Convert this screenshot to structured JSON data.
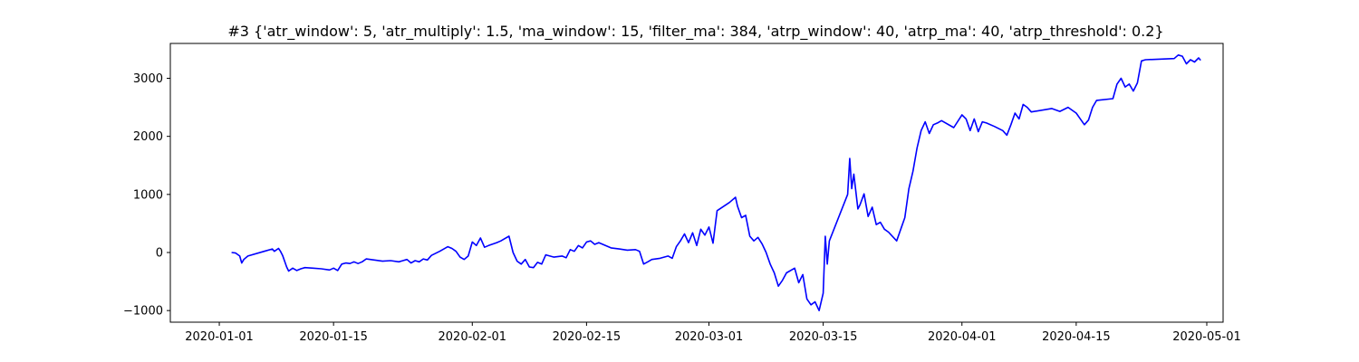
{
  "chart_data": {
    "type": "line",
    "title": "#3 {'atr_window': 5, 'atr_multiply': 1.5, 'ma_window': 15, 'filter_ma': 384, 'atrp_window': 40, 'atrp_ma': 40, 'atrp_threshold': 0.2}",
    "xlabel": "",
    "ylabel": "",
    "x_is_date": true,
    "xlim": [
      "2019-12-26",
      "2020-05-03"
    ],
    "ylim": [
      -1200,
      3600
    ],
    "x_ticks": [
      "2020-01-01",
      "2020-01-15",
      "2020-02-01",
      "2020-02-15",
      "2020-03-01",
      "2020-03-15",
      "2020-04-01",
      "2020-04-15",
      "2020-05-01"
    ],
    "y_ticks": [
      -1000,
      0,
      1000,
      2000,
      3000
    ],
    "y_tick_labels": [
      "−1000",
      "0",
      "1000",
      "2000",
      "3000"
    ],
    "grid": false,
    "legend": "none",
    "line_color": "#0000ff",
    "series": [
      {
        "points": [
          [
            "2020-01-02T12:00",
            0
          ],
          [
            "2020-01-03T00:00",
            -10
          ],
          [
            "2020-01-03T12:00",
            -60
          ],
          [
            "2020-01-03T18:00",
            -180
          ],
          [
            "2020-01-04T00:00",
            -120
          ],
          [
            "2020-01-04T12:00",
            -60
          ],
          [
            "2020-01-06T12:00",
            20
          ],
          [
            "2020-01-07T12:00",
            60
          ],
          [
            "2020-01-07T18:00",
            20
          ],
          [
            "2020-01-08T06:00",
            70
          ],
          [
            "2020-01-08T12:00",
            20
          ],
          [
            "2020-01-08T18:00",
            -50
          ],
          [
            "2020-01-09T06:00",
            -250
          ],
          [
            "2020-01-09T12:00",
            -320
          ],
          [
            "2020-01-10T00:00",
            -270
          ],
          [
            "2020-01-10T12:00",
            -310
          ],
          [
            "2020-01-11T00:00",
            -280
          ],
          [
            "2020-01-11T12:00",
            -260
          ],
          [
            "2020-01-12T12:00",
            -270
          ],
          [
            "2020-01-13T12:00",
            -280
          ],
          [
            "2020-01-14T12:00",
            -300
          ],
          [
            "2020-01-15T00:00",
            -270
          ],
          [
            "2020-01-15T12:00",
            -310
          ],
          [
            "2020-01-16T00:00",
            -200
          ],
          [
            "2020-01-16T12:00",
            -180
          ],
          [
            "2020-01-17T00:00",
            -190
          ],
          [
            "2020-01-17T12:00",
            -160
          ],
          [
            "2020-01-18T00:00",
            -190
          ],
          [
            "2020-01-18T12:00",
            -160
          ],
          [
            "2020-01-19T00:00",
            -110
          ],
          [
            "2020-01-20T00:00",
            -130
          ],
          [
            "2020-01-21T00:00",
            -150
          ],
          [
            "2020-01-22T00:00",
            -140
          ],
          [
            "2020-01-23T00:00",
            -160
          ],
          [
            "2020-01-23T12:00",
            -140
          ],
          [
            "2020-01-24T00:00",
            -120
          ],
          [
            "2020-01-24T12:00",
            -180
          ],
          [
            "2020-01-25T00:00",
            -140
          ],
          [
            "2020-01-25T12:00",
            -160
          ],
          [
            "2020-01-26T00:00",
            -110
          ],
          [
            "2020-01-26T12:00",
            -130
          ],
          [
            "2020-01-27T00:00",
            -50
          ],
          [
            "2020-01-28T00:00",
            20
          ],
          [
            "2020-01-29T00:00",
            100
          ],
          [
            "2020-01-29T12:00",
            70
          ],
          [
            "2020-01-30T00:00",
            20
          ],
          [
            "2020-01-30T12:00",
            -80
          ],
          [
            "2020-01-31T00:00",
            -120
          ],
          [
            "2020-01-31T12:00",
            -60
          ],
          [
            "2020-02-01T00:00",
            180
          ],
          [
            "2020-02-01T12:00",
            120
          ],
          [
            "2020-02-02T00:00",
            250
          ],
          [
            "2020-02-02T12:00",
            90
          ],
          [
            "2020-02-03T00:00",
            120
          ],
          [
            "2020-02-04T00:00",
            170
          ],
          [
            "2020-02-04T12:00",
            200
          ],
          [
            "2020-02-05T00:00",
            240
          ],
          [
            "2020-02-05T12:00",
            280
          ],
          [
            "2020-02-06T00:00",
            0
          ],
          [
            "2020-02-06T12:00",
            -150
          ],
          [
            "2020-02-07T00:00",
            -200
          ],
          [
            "2020-02-07T12:00",
            -120
          ],
          [
            "2020-02-08T00:00",
            -250
          ],
          [
            "2020-02-08T12:00",
            -260
          ],
          [
            "2020-02-09T00:00",
            -170
          ],
          [
            "2020-02-09T12:00",
            -200
          ],
          [
            "2020-02-10T00:00",
            -40
          ],
          [
            "2020-02-11T00:00",
            -80
          ],
          [
            "2020-02-12T00:00",
            -60
          ],
          [
            "2020-02-12T12:00",
            -90
          ],
          [
            "2020-02-13T00:00",
            50
          ],
          [
            "2020-02-13T12:00",
            20
          ],
          [
            "2020-02-14T00:00",
            120
          ],
          [
            "2020-02-14T12:00",
            80
          ],
          [
            "2020-02-15T00:00",
            180
          ],
          [
            "2020-02-15T12:00",
            200
          ],
          [
            "2020-02-16T00:00",
            140
          ],
          [
            "2020-02-16T12:00",
            170
          ],
          [
            "2020-02-18T00:00",
            80
          ],
          [
            "2020-02-19T00:00",
            60
          ],
          [
            "2020-02-20T00:00",
            40
          ],
          [
            "2020-02-21T00:00",
            50
          ],
          [
            "2020-02-21T12:00",
            20
          ],
          [
            "2020-02-22T00:00",
            -200
          ],
          [
            "2020-02-22T12:00",
            -160
          ],
          [
            "2020-02-23T00:00",
            -120
          ],
          [
            "2020-02-24T00:00",
            -100
          ],
          [
            "2020-02-25T00:00",
            -60
          ],
          [
            "2020-02-25T12:00",
            -100
          ],
          [
            "2020-02-26T00:00",
            100
          ],
          [
            "2020-02-26T12:00",
            200
          ],
          [
            "2020-02-27T00:00",
            320
          ],
          [
            "2020-02-27T12:00",
            170
          ],
          [
            "2020-02-28T00:00",
            340
          ],
          [
            "2020-02-28T12:00",
            120
          ],
          [
            "2020-02-29T00:00",
            400
          ],
          [
            "2020-02-29T12:00",
            300
          ],
          [
            "2020-03-01T00:00",
            440
          ],
          [
            "2020-03-01T12:00",
            160
          ],
          [
            "2020-03-02T00:00",
            720
          ],
          [
            "2020-03-03T12:00",
            860
          ],
          [
            "2020-03-04T06:00",
            950
          ],
          [
            "2020-03-04T12:00",
            800
          ],
          [
            "2020-03-05T00:00",
            600
          ],
          [
            "2020-03-05T12:00",
            640
          ],
          [
            "2020-03-06T00:00",
            280
          ],
          [
            "2020-03-06T12:00",
            200
          ],
          [
            "2020-03-07T00:00",
            260
          ],
          [
            "2020-03-07T12:00",
            150
          ],
          [
            "2020-03-08T00:00",
            0
          ],
          [
            "2020-03-08T12:00",
            -200
          ],
          [
            "2020-03-09T00:00",
            -350
          ],
          [
            "2020-03-09T12:00",
            -580
          ],
          [
            "2020-03-10T00:00",
            -480
          ],
          [
            "2020-03-10T12:00",
            -350
          ],
          [
            "2020-03-11T12:00",
            -270
          ],
          [
            "2020-03-12T00:00",
            -520
          ],
          [
            "2020-03-12T12:00",
            -380
          ],
          [
            "2020-03-13T00:00",
            -800
          ],
          [
            "2020-03-13T12:00",
            -900
          ],
          [
            "2020-03-14T00:00",
            -850
          ],
          [
            "2020-03-14T12:00",
            -1000
          ],
          [
            "2020-03-15T00:00",
            -700
          ],
          [
            "2020-03-15T06:00",
            280
          ],
          [
            "2020-03-15T12:00",
            -200
          ],
          [
            "2020-03-15T18:00",
            200
          ],
          [
            "2020-03-18T00:00",
            1000
          ],
          [
            "2020-03-18T06:00",
            1620
          ],
          [
            "2020-03-18T12:00",
            1100
          ],
          [
            "2020-03-18T18:00",
            1350
          ],
          [
            "2020-03-19T06:00",
            750
          ],
          [
            "2020-03-19T12:00",
            820
          ],
          [
            "2020-03-20T00:00",
            1010
          ],
          [
            "2020-03-20T12:00",
            620
          ],
          [
            "2020-03-21T00:00",
            780
          ],
          [
            "2020-03-21T12:00",
            480
          ],
          [
            "2020-03-22T00:00",
            520
          ],
          [
            "2020-03-22T12:00",
            400
          ],
          [
            "2020-03-23T00:00",
            350
          ],
          [
            "2020-03-24T00:00",
            200
          ],
          [
            "2020-03-24T12:00",
            400
          ],
          [
            "2020-03-25T00:00",
            600
          ],
          [
            "2020-03-25T12:00",
            1100
          ],
          [
            "2020-03-26T00:00",
            1400
          ],
          [
            "2020-03-26T12:00",
            1800
          ],
          [
            "2020-03-27T00:00",
            2100
          ],
          [
            "2020-03-27T12:00",
            2250
          ],
          [
            "2020-03-28T00:00",
            2050
          ],
          [
            "2020-03-28T12:00",
            2200
          ],
          [
            "2020-03-29T00:00",
            2230
          ],
          [
            "2020-03-29T12:00",
            2270
          ],
          [
            "2020-03-31T00:00",
            2150
          ],
          [
            "2020-04-01T00:00",
            2370
          ],
          [
            "2020-04-01T12:00",
            2300
          ],
          [
            "2020-04-02T00:00",
            2100
          ],
          [
            "2020-04-02T12:00",
            2300
          ],
          [
            "2020-04-03T00:00",
            2080
          ],
          [
            "2020-04-03T12:00",
            2250
          ],
          [
            "2020-04-04T00:00",
            2230
          ],
          [
            "2020-04-05T00:00",
            2170
          ],
          [
            "2020-04-06T00:00",
            2100
          ],
          [
            "2020-04-06T12:00",
            2020
          ],
          [
            "2020-04-07T00:00",
            2200
          ],
          [
            "2020-04-07T12:00",
            2400
          ],
          [
            "2020-04-08T00:00",
            2300
          ],
          [
            "2020-04-08T12:00",
            2550
          ],
          [
            "2020-04-09T00:00",
            2500
          ],
          [
            "2020-04-09T12:00",
            2420
          ],
          [
            "2020-04-12T00:00",
            2480
          ],
          [
            "2020-04-13T00:00",
            2430
          ],
          [
            "2020-04-14T00:00",
            2500
          ],
          [
            "2020-04-15T00:00",
            2400
          ],
          [
            "2020-04-15T12:00",
            2300
          ],
          [
            "2020-04-16T00:00",
            2200
          ],
          [
            "2020-04-16T12:00",
            2280
          ],
          [
            "2020-04-17T00:00",
            2500
          ],
          [
            "2020-04-17T12:00",
            2620
          ],
          [
            "2020-04-19T12:00",
            2650
          ],
          [
            "2020-04-20T00:00",
            2900
          ],
          [
            "2020-04-20T12:00",
            3000
          ],
          [
            "2020-04-21T00:00",
            2850
          ],
          [
            "2020-04-21T12:00",
            2900
          ],
          [
            "2020-04-22T00:00",
            2780
          ],
          [
            "2020-04-22T12:00",
            2920
          ],
          [
            "2020-04-23T00:00",
            3300
          ],
          [
            "2020-04-23T12:00",
            3320
          ],
          [
            "2020-04-27T00:00",
            3340
          ],
          [
            "2020-04-27T12:00",
            3400
          ],
          [
            "2020-04-28T00:00",
            3380
          ],
          [
            "2020-04-28T12:00",
            3250
          ],
          [
            "2020-04-29T00:00",
            3320
          ],
          [
            "2020-04-29T12:00",
            3280
          ],
          [
            "2020-04-30T00:00",
            3350
          ],
          [
            "2020-04-30T06:00",
            3310
          ]
        ]
      }
    ]
  }
}
